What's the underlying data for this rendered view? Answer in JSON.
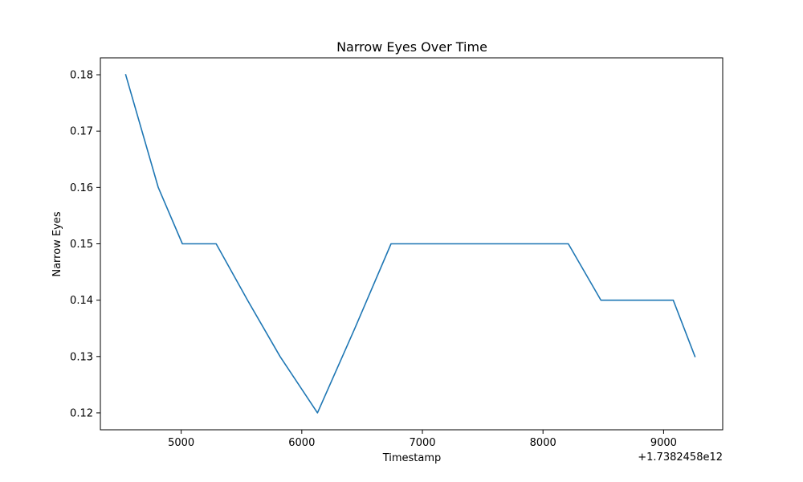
{
  "chart_data": {
    "type": "line",
    "title": "Narrow Eyes Over Time",
    "xlabel": "Timestamp",
    "ylabel": "Narrow Eyes",
    "x_offset_label": "+1.7382458e12",
    "grid": false,
    "legend": "none",
    "xlim": [
      4330,
      9490
    ],
    "ylim": [
      0.117,
      0.183
    ],
    "x_ticks": [
      5000,
      6000,
      7000,
      8000,
      9000
    ],
    "y_ticks": [
      0.12,
      0.13,
      0.14,
      0.15,
      0.16,
      0.17,
      0.18
    ],
    "series": [
      {
        "color": "#1f77b4",
        "x": [
          4540,
          4810,
          5010,
          5290,
          5550,
          5820,
          6130,
          6440,
          6740,
          7150,
          7500,
          7900,
          8210,
          8480,
          8800,
          9080,
          9260
        ],
        "y": [
          0.18,
          0.16,
          0.15,
          0.15,
          0.14,
          0.13,
          0.12,
          0.135,
          0.15,
          0.15,
          0.15,
          0.15,
          0.15,
          0.14,
          0.14,
          0.14,
          0.13
        ]
      }
    ]
  }
}
